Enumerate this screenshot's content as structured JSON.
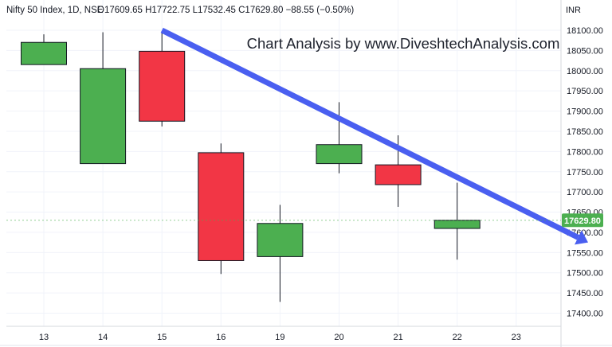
{
  "header": {
    "symbol": "Nifty 50 Index, 1D, NSE",
    "ohlc": "O17609.65 H17722.75 L17532.45 C17629.80 −88.55 (−0.50%)"
  },
  "currency": "INR",
  "watermark": "Chart Analysis by www.DiveshtechAnalysis.com",
  "last_price_label": "17629.80",
  "colors": {
    "up": "#4caf50",
    "down": "#f23645",
    "trendline": "#4a5ff0",
    "last_price_bg": "#4caf50"
  },
  "chart_data": {
    "type": "candlestick",
    "x_ticks": [
      "13",
      "14",
      "15",
      "16",
      "19",
      "20",
      "21",
      "22",
      "23"
    ],
    "y_ticks": [
      "17400.00",
      "17450.00",
      "17500.00",
      "17550.00",
      "17600.00",
      "17650.00",
      "17700.00",
      "17750.00",
      "17800.00",
      "17850.00",
      "17900.00",
      "17950.00",
      "18000.00",
      "18050.00",
      "18100.00"
    ],
    "ylim": [
      17375,
      18135
    ],
    "candles": [
      {
        "date": "13",
        "open": 18015,
        "high": 18090,
        "low": 18015,
        "close": 18070
      },
      {
        "date": "14",
        "open": 17770,
        "high": 18095,
        "low": 17770,
        "close": 18005
      },
      {
        "date": "15",
        "open": 18048,
        "high": 18098,
        "low": 17862,
        "close": 17875
      },
      {
        "date": "16",
        "open": 17797,
        "high": 17820,
        "low": 17497,
        "close": 17530
      },
      {
        "date": "19",
        "open": 17540,
        "high": 17668,
        "low": 17428,
        "close": 17622
      },
      {
        "date": "20",
        "open": 17770,
        "high": 17922,
        "low": 17746,
        "close": 17817
      },
      {
        "date": "21",
        "open": 17767,
        "high": 17840,
        "low": 17663,
        "close": 17718
      },
      {
        "date": "22",
        "open": 17609.65,
        "high": 17722.75,
        "low": 17532.45,
        "close": 17629.8
      }
    ],
    "last_price": 17629.8,
    "trendline": {
      "from": {
        "date": "15",
        "value": 18100
      },
      "to": {
        "date": "23+",
        "value": 17575
      }
    }
  }
}
